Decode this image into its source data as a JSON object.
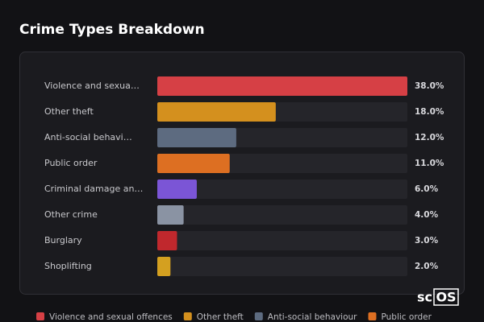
{
  "chart_data": {
    "type": "bar",
    "orientation": "horizontal",
    "title": "Crime Types Breakdown",
    "categories": [
      "Violence and sexua…",
      "Other theft",
      "Anti-social behavi…",
      "Public order",
      "Criminal damage an…",
      "Other crime",
      "Burglary",
      "Shoplifting"
    ],
    "values": [
      38,
      18,
      12,
      11,
      6,
      4,
      3,
      2
    ],
    "value_labels": [
      "38.0%",
      "18.0%",
      "12.0%",
      "11.0%",
      "6.0%",
      "4.0%",
      "3.0%",
      "2.0%"
    ],
    "colors": [
      "#d64045",
      "#d4901e",
      "#5d6b80",
      "#dd6f22",
      "#7b55d6",
      "#8a93a3",
      "#c0282d",
      "#d4a020"
    ],
    "xlim": [
      0,
      38
    ],
    "legend": [
      "Violence and sexual offences",
      "Other theft",
      "Anti-social behaviour",
      "Public order"
    ]
  },
  "watermark": {
    "prefix": "sc",
    "boxed": "OS"
  }
}
